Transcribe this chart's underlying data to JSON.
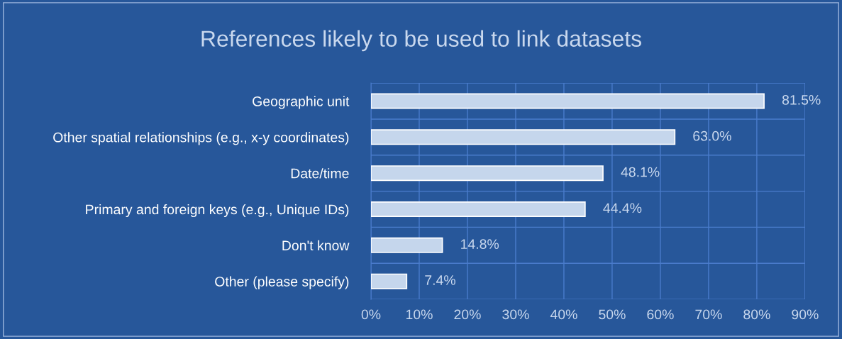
{
  "chart_data": {
    "type": "bar",
    "orientation": "horizontal",
    "title": "References likely to be used to link datasets",
    "categories": [
      "Geographic unit",
      "Other spatial relationships (e.g., x-y coordinates)",
      "Date/time",
      "Primary and foreign keys (e.g., Unique IDs)",
      "Don't know",
      "Other (please specify)"
    ],
    "values": [
      81.5,
      63.0,
      48.1,
      44.4,
      14.8,
      7.4
    ],
    "value_labels": [
      "81.5%",
      "63.0%",
      "48.1%",
      "44.4%",
      "14.8%",
      "7.4%"
    ],
    "color": "#c5d6ec",
    "xlim": [
      0,
      90
    ],
    "xticks": [
      {
        "value": 0,
        "label": "0%"
      },
      {
        "value": 10,
        "label": "10%"
      },
      {
        "value": 20,
        "label": "20%"
      },
      {
        "value": 30,
        "label": "30%"
      },
      {
        "value": 40,
        "label": "40%"
      },
      {
        "value": 50,
        "label": "50%"
      },
      {
        "value": 60,
        "label": "60%"
      },
      {
        "value": 70,
        "label": "70%"
      },
      {
        "value": 80,
        "label": "80%"
      },
      {
        "value": 90,
        "label": "90%"
      }
    ],
    "grid": true
  }
}
